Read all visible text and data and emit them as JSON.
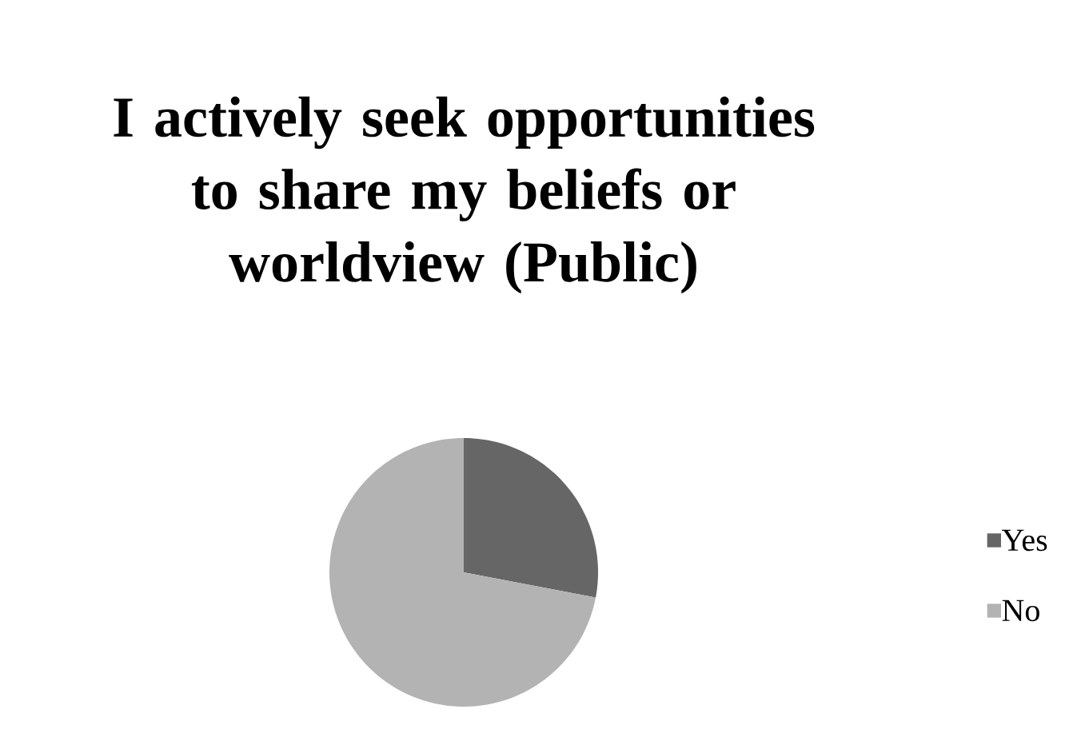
{
  "chart_data": {
    "type": "pie",
    "title": "I actively seek opportunities to share my beliefs or worldview (Public)",
    "categories": [
      "Yes",
      "No"
    ],
    "values": [
      28,
      72
    ],
    "colors": [
      "#666666",
      "#b3b3b3"
    ],
    "legend": "right"
  }
}
